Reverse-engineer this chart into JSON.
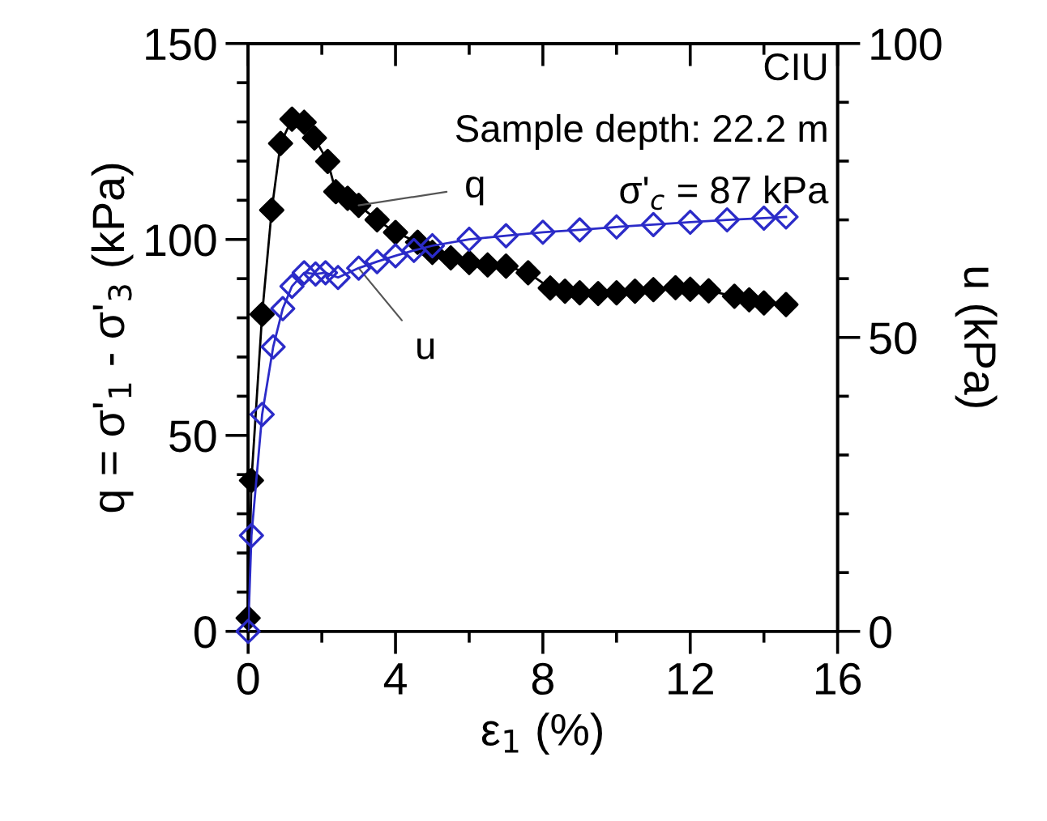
{
  "chart_data": {
    "type": "line",
    "xlabel": "ε$_{1}$ (%)",
    "ylabel": "q = σ'$_{1}$ - σ'$_{3}$ (kPa)",
    "y2label": "u (kPa)",
    "xlim": [
      0,
      16
    ],
    "xticks": [
      0,
      4,
      8,
      12,
      16
    ],
    "ylim": [
      0,
      150
    ],
    "yticks": [
      0,
      50,
      100,
      150
    ],
    "y2lim": [
      0,
      100
    ],
    "y2ticks": [
      0,
      50,
      100
    ],
    "grid": false,
    "marker": "diamond",
    "line_style": "solid",
    "series": [
      {
        "color": "#000000",
        "x": [
          0,
          0.09,
          0.38,
          0.64,
          0.88,
          1.19,
          1.52,
          1.8,
          2.16,
          2.38,
          2.7,
          3.0,
          3.5,
          4.0,
          4.6,
          5.0,
          5.5,
          6.0,
          6.5,
          7.0,
          7.6,
          8.2,
          8.6,
          9.0,
          9.5,
          10.0,
          10.5,
          11.0,
          11.6,
          12.0,
          12.5,
          13.2,
          13.6,
          14.0,
          14.6
        ],
        "values": [
          3.4,
          38.5,
          80.9,
          107.5,
          124.5,
          130.7,
          129.9,
          125.9,
          119.9,
          112.2,
          110.5,
          108.7,
          105,
          101.8,
          99.3,
          96.7,
          95.3,
          94.1,
          93.5,
          93.2,
          91.5,
          87.6,
          86.8,
          86.4,
          86.2,
          86.4,
          86.8,
          87.2,
          87.7,
          87.3,
          86.9,
          85.5,
          84.6,
          83.8,
          83.4
        ]
      },
      {
        "color": "#2b2bc8",
        "axis": "y2",
        "x": [
          0,
          0.09,
          0.38,
          0.68,
          0.94,
          1.19,
          1.52,
          1.83,
          2.1,
          2.44,
          3.0,
          3.5,
          4.0,
          4.5,
          5.0,
          6.0,
          7.0,
          8.0,
          9.0,
          10.0,
          11.0,
          12.0,
          13.0,
          14.0,
          14.6
        ],
        "values": [
          0,
          16.3,
          36.9,
          48.4,
          54.9,
          58.7,
          61.0,
          60.8,
          61.0,
          60.2,
          61.8,
          62.9,
          63.9,
          64.8,
          65.6,
          66.7,
          67.3,
          67.9,
          68.3,
          68.8,
          69.2,
          69.6,
          70.0,
          70.3,
          70.5
        ]
      }
    ],
    "annotations": [
      "CIU",
      "Sample depth: 22.2 m",
      "σ'$_{c}$ = 87 kPa",
      {
        "text": "q",
        "x": 3.0,
        "y": 108.7
      },
      {
        "text": "u",
        "x": 3.0,
        "y": 92.7
      }
    ]
  }
}
